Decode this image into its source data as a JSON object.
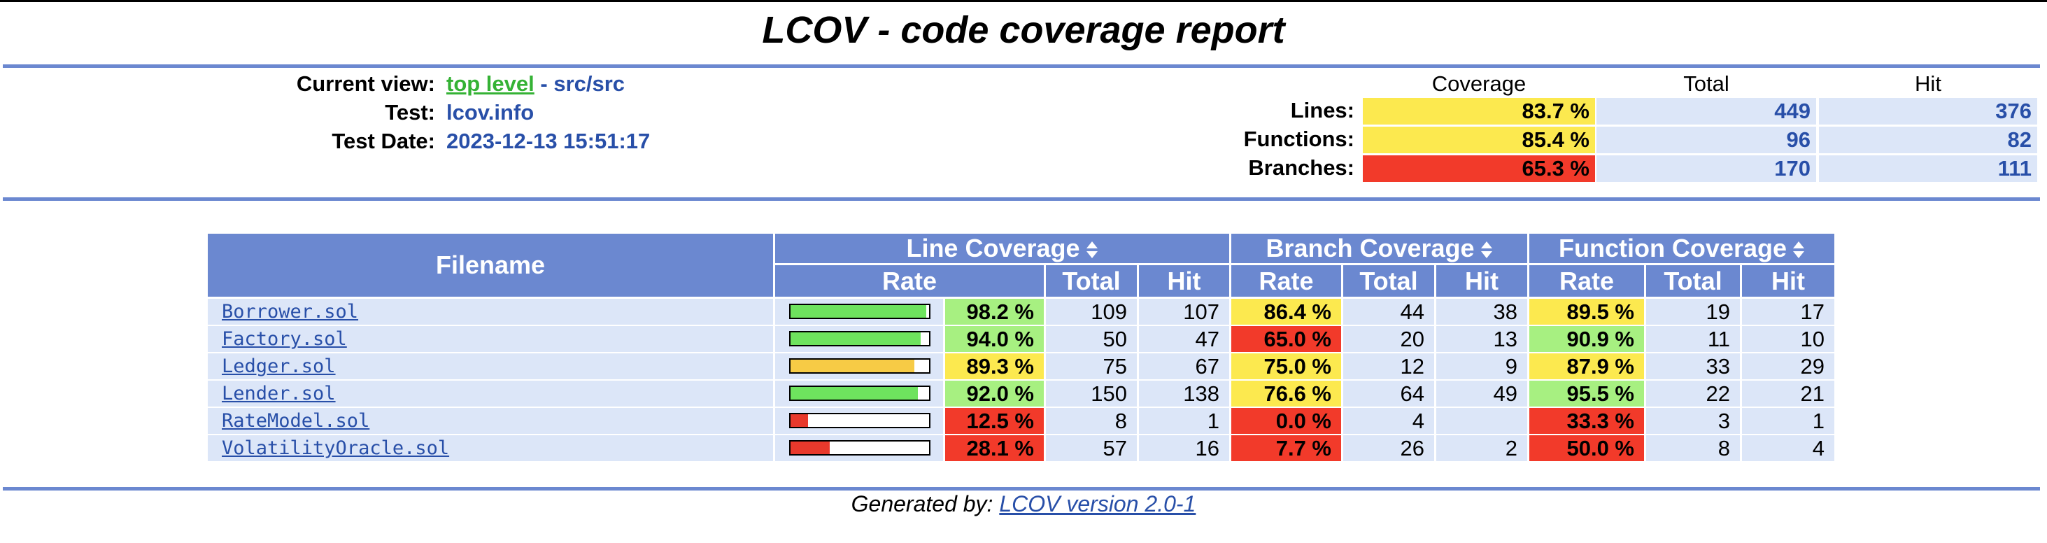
{
  "title": "LCOV - code coverage report",
  "colors": {
    "header_blue": "#6b88d0",
    "row_bg": "#dce6f8",
    "high": "#a7f081",
    "medium": "#fce94f",
    "low": "#f23a2a",
    "bar_high": "#6ee35e",
    "bar_medium": "#f7cb45",
    "bar_low": "#e8392c"
  },
  "info": {
    "current_view_label": "Current view:",
    "top_level_link": "top level",
    "separator": " - ",
    "current_path": "src/src",
    "test_label": "Test:",
    "test_value": "lcov.info",
    "date_label": "Test Date:",
    "date_value": "2023-12-13 15:51:17"
  },
  "summary": {
    "headers": {
      "coverage": "Coverage",
      "total": "Total",
      "hit": "Hit"
    },
    "rows": [
      {
        "label": "Lines:",
        "coverage": "83.7 %",
        "total": "449",
        "hit": "376",
        "level": "medium"
      },
      {
        "label": "Functions:",
        "coverage": "85.4 %",
        "total": "96",
        "hit": "82",
        "level": "medium"
      },
      {
        "label": "Branches:",
        "coverage": "65.3 %",
        "total": "170",
        "hit": "111",
        "level": "low"
      }
    ]
  },
  "table": {
    "headers": {
      "filename": "Filename",
      "line_coverage": "Line Coverage",
      "branch_coverage": "Branch Coverage",
      "function_coverage": "Function Coverage",
      "rate": "Rate",
      "total": "Total",
      "hit": "Hit"
    },
    "rows": [
      {
        "file": "Borrower.sol",
        "line_pct": 98.2,
        "line_rate": "98.2 %",
        "line_level": "high",
        "line_total": "109",
        "line_hit": "107",
        "branch_rate": "86.4 %",
        "branch_level": "medium",
        "branch_total": "44",
        "branch_hit": "38",
        "func_rate": "89.5 %",
        "func_level": "medium",
        "func_total": "19",
        "func_hit": "17"
      },
      {
        "file": "Factory.sol",
        "line_pct": 94.0,
        "line_rate": "94.0 %",
        "line_level": "high",
        "line_total": "50",
        "line_hit": "47",
        "branch_rate": "65.0 %",
        "branch_level": "low",
        "branch_total": "20",
        "branch_hit": "13",
        "func_rate": "90.9 %",
        "func_level": "high",
        "func_total": "11",
        "func_hit": "10"
      },
      {
        "file": "Ledger.sol",
        "line_pct": 89.3,
        "line_rate": "89.3 %",
        "line_level": "medium",
        "line_total": "75",
        "line_hit": "67",
        "branch_rate": "75.0 %",
        "branch_level": "medium",
        "branch_total": "12",
        "branch_hit": "9",
        "func_rate": "87.9 %",
        "func_level": "medium",
        "func_total": "33",
        "func_hit": "29"
      },
      {
        "file": "Lender.sol",
        "line_pct": 92.0,
        "line_rate": "92.0 %",
        "line_level": "high",
        "line_total": "150",
        "line_hit": "138",
        "branch_rate": "76.6 %",
        "branch_level": "medium",
        "branch_total": "64",
        "branch_hit": "49",
        "func_rate": "95.5 %",
        "func_level": "high",
        "func_total": "22",
        "func_hit": "21"
      },
      {
        "file": "RateModel.sol",
        "line_pct": 12.5,
        "line_rate": "12.5 %",
        "line_level": "low",
        "line_total": "8",
        "line_hit": "1",
        "branch_rate": "0.0 %",
        "branch_level": "low",
        "branch_total": "4",
        "branch_hit": "",
        "func_rate": "33.3 %",
        "func_level": "low",
        "func_total": "3",
        "func_hit": "1"
      },
      {
        "file": "VolatilityOracle.sol",
        "line_pct": 28.1,
        "line_rate": "28.1 %",
        "line_level": "low",
        "line_total": "57",
        "line_hit": "16",
        "branch_rate": "7.7 %",
        "branch_level": "low",
        "branch_total": "26",
        "branch_hit": "2",
        "func_rate": "50.0 %",
        "func_level": "low",
        "func_total": "8",
        "func_hit": "4"
      }
    ]
  },
  "footer": {
    "prefix": "Generated by: ",
    "link": "LCOV version 2.0-1"
  }
}
